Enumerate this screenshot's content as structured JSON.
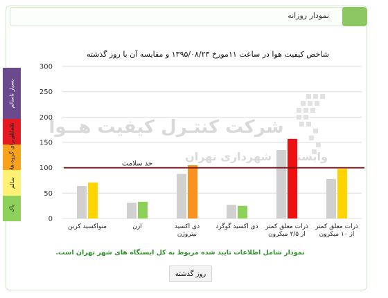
{
  "header": {
    "title": "نمودار روزانه"
  },
  "aqi_bands": [
    {
      "label": "بسیار ناسالم",
      "color": "#6a4a8c",
      "text_color": "#ffffff"
    },
    {
      "label": "ناسالم",
      "color": "#e51b23",
      "text_color": "#222222"
    },
    {
      "label": "ناسالم برای گروه های حساس",
      "color": "#f6a21d",
      "text_color": "#222222"
    },
    {
      "label": "سالم",
      "color": "#fff176",
      "text_color": "#222222"
    },
    {
      "label": "پاک",
      "color": "#8dd15b",
      "text_color": "#222222"
    }
  ],
  "chart_data": {
    "type": "bar",
    "title": "شاخص کیفیت هوا در ساعت ۱۱مورخ ۱۳۹۵/۰۸/۲۳ و مقایسه آن با روز گذشته",
    "categories": [
      "منواکسید کربن",
      "ازن",
      "دی اکسید نیتروژن",
      "دی اکسید گوگرد",
      "ذرات معلق کمتر از ۲/۵ میکرون",
      "ذرات معلق کمتر از ۱۰ میکرون"
    ],
    "series": [
      {
        "values": [
          64,
          31,
          88,
          27,
          135,
          78
        ],
        "color": "#d0d0d0"
      },
      {
        "values": [
          71,
          33,
          105,
          25,
          157,
          98
        ],
        "colors": [
          "#ffd400",
          "#8dd15b",
          "#f7931e",
          "#8dd15b",
          "#ee1111",
          "#ffd400"
        ]
      }
    ],
    "ylim": [
      0,
      300
    ],
    "yticks": [
      0,
      50,
      100,
      150,
      200,
      250,
      300
    ],
    "reference_line": {
      "value": 100,
      "label": "حد سلامت",
      "color": "#7a1515"
    },
    "watermark": {
      "line1": "شرکت کنتـرل کیفیت هــوا",
      "line2": "وابسته به شهرداری تهران"
    }
  },
  "footnote": "نمودار شامل اطلاعات تایید شده مربوط به کل ایستگاه های شهر تهران است.",
  "button": {
    "label": "روز گذشته"
  }
}
